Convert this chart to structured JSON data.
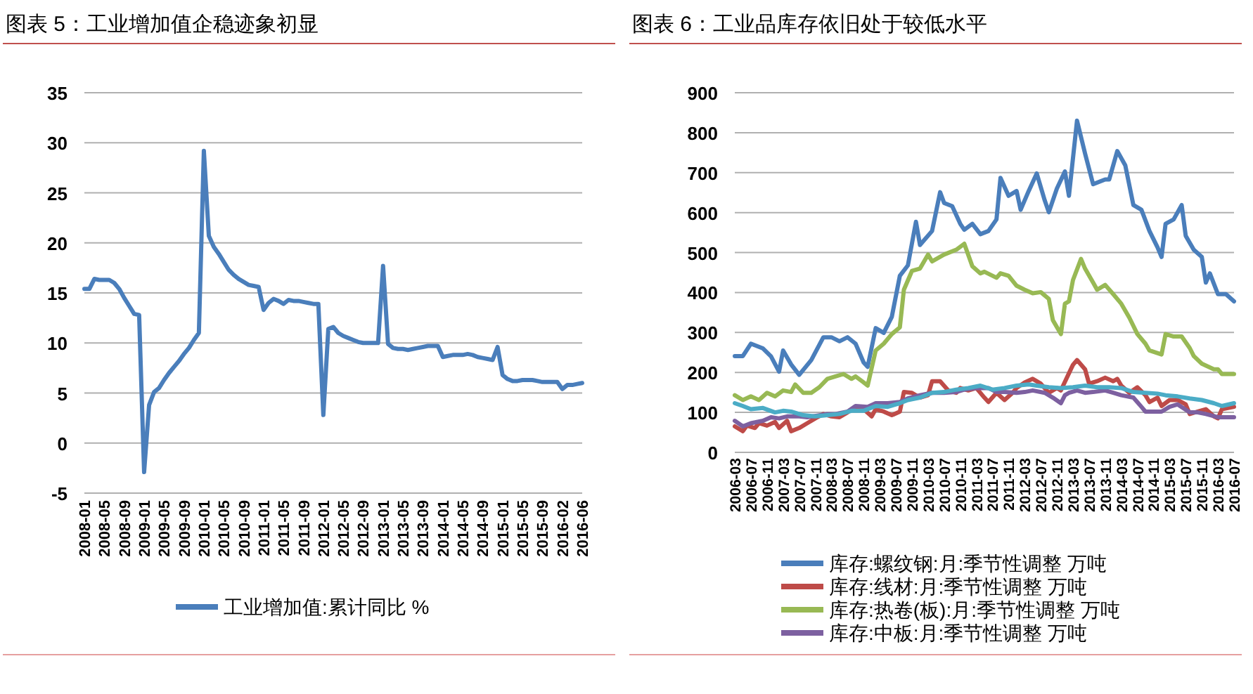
{
  "chart_data": [
    {
      "type": "line",
      "title": "图表 5：工业增加值企稳迹象初显",
      "grid": "y",
      "legend": "bottom",
      "ylim": [
        -5,
        35
      ],
      "yticks": [
        -5,
        0,
        5,
        10,
        15,
        20,
        25,
        30,
        35
      ],
      "categories": [
        "2008-01",
        null,
        null,
        null,
        "2008-05",
        null,
        null,
        null,
        "2008-09",
        null,
        null,
        null,
        "2009-01",
        null,
        null,
        null,
        "2009-05",
        null,
        null,
        null,
        "2009-09",
        null,
        null,
        null,
        "2010-01",
        null,
        null,
        null,
        "2010-05",
        null,
        null,
        null,
        "2010-09",
        null,
        null,
        null,
        "2011-01",
        null,
        null,
        null,
        "2011-05",
        null,
        null,
        null,
        "2011-09",
        null,
        null,
        null,
        "2012-01",
        null,
        null,
        null,
        "2012-05",
        null,
        null,
        null,
        "2012-09",
        null,
        null,
        null,
        "2013-01",
        null,
        null,
        null,
        "2013-05",
        null,
        null,
        null,
        "2013-09",
        null,
        null,
        null,
        "2014-01",
        null,
        null,
        null,
        "2014-05",
        null,
        null,
        null,
        "2014-09",
        null,
        null,
        null,
        "2015-01",
        null,
        null,
        null,
        "2015-05",
        null,
        null,
        null,
        "2015-09",
        null,
        null,
        null,
        "2016-02",
        null,
        null,
        null,
        "2016-06"
      ],
      "series": [
        {
          "name": "工业增加值:累计同比 %",
          "color": "#4a7ebb",
          "values": [
            15.4,
            15.4,
            16.4,
            16.3,
            16.3,
            16.3,
            16.0,
            15.4,
            14.5,
            13.7,
            12.9,
            12.8,
            -2.9,
            3.8,
            5.1,
            5.5,
            6.3,
            7.0,
            7.6,
            8.2,
            8.9,
            9.5,
            10.3,
            11.0,
            29.2,
            20.7,
            19.6,
            18.9,
            18.1,
            17.3,
            16.8,
            16.4,
            16.1,
            15.8,
            15.7,
            15.6,
            13.3,
            14.0,
            14.4,
            14.2,
            13.9,
            14.3,
            14.2,
            14.2,
            14.1,
            14.0,
            13.9,
            13.9,
            2.8,
            11.4,
            11.6,
            11.0,
            10.7,
            10.5,
            10.3,
            10.1,
            10.0,
            10.0,
            10.0,
            10.0,
            17.7,
            9.9,
            9.5,
            9.4,
            9.4,
            9.3,
            9.4,
            9.5,
            9.6,
            9.7,
            9.7,
            9.7,
            8.6,
            8.7,
            8.8,
            8.8,
            8.8,
            8.9,
            8.8,
            8.6,
            8.5,
            8.4,
            8.3,
            9.6,
            6.8,
            6.4,
            6.2,
            6.2,
            6.3,
            6.3,
            6.3,
            6.2,
            6.1,
            6.1,
            6.1,
            6.1,
            5.4,
            5.8,
            5.8,
            5.9,
            6.0
          ]
        }
      ]
    },
    {
      "type": "line",
      "title": "图表 6：工业品库存依旧处于较低水平",
      "grid": "y",
      "legend": "bottom",
      "ylim": [
        0,
        900
      ],
      "yticks": [
        0,
        100,
        200,
        300,
        400,
        500,
        600,
        700,
        800,
        900
      ],
      "xlim": [
        "2006-03",
        "2016-07"
      ],
      "xticks": [
        "2006-03",
        "2006-07",
        "2006-11",
        "2007-03",
        "2007-07",
        "2007-11",
        "2008-03",
        "2008-07",
        "2008-11",
        "2009-03",
        "2009-07",
        "2009-11",
        "2010-03",
        "2010-07",
        "2010-11",
        "2011-03",
        "2011-07",
        "2011-11",
        "2012-03",
        "2012-07",
        "2012-11",
        "2013-03",
        "2013-07",
        "2013-11",
        "2014-03",
        "2014-07",
        "2014-11",
        "2015-03",
        "2015-07",
        "2015-11",
        "2016-03",
        "2016-07"
      ],
      "series": [
        {
          "name": "库存:螺纹钢:月:季节性调整 万吨",
          "color": "#4a7ebb",
          "x": [
            "2006-03",
            "2006-05",
            "2006-07",
            "2006-10",
            "2006-12",
            "2007-02",
            "2007-03",
            "2007-05",
            "2007-07",
            "2007-10",
            "2008-01",
            "2008-03",
            "2008-05",
            "2008-07",
            "2008-09",
            "2008-11",
            "2008-12",
            "2009-02",
            "2009-04",
            "2009-06",
            "2009-08",
            "2009-10",
            "2009-12",
            "2010-01",
            "2010-04",
            "2010-06",
            "2010-07",
            "2010-09",
            "2010-11",
            "2010-12",
            "2011-02",
            "2011-04",
            "2011-06",
            "2011-08",
            "2011-09",
            "2011-11",
            "2012-01",
            "2012-02",
            "2012-04",
            "2012-06",
            "2012-08",
            "2012-09",
            "2012-11",
            "2013-01",
            "2013-02",
            "2013-04",
            "2013-06",
            "2013-08",
            "2013-11",
            "2013-12",
            "2014-02",
            "2014-04",
            "2014-06",
            "2014-08",
            "2014-10",
            "2014-12",
            "2015-01",
            "2015-02",
            "2015-04",
            "2015-06",
            "2015-07",
            "2015-09",
            "2015-11",
            "2015-12",
            "2016-01",
            "2016-03",
            "2016-05",
            "2016-07"
          ],
          "values": [
            241,
            241,
            272,
            260,
            240,
            202,
            255,
            220,
            194,
            231,
            288,
            288,
            278,
            288,
            272,
            225,
            214,
            311,
            299,
            339,
            442,
            468,
            577,
            519,
            554,
            651,
            624,
            616,
            572,
            557,
            572,
            546,
            554,
            583,
            687,
            642,
            654,
            607,
            654,
            698,
            630,
            601,
            660,
            703,
            642,
            830,
            748,
            671,
            683,
            683,
            754,
            718,
            619,
            607,
            554,
            513,
            489,
            572,
            583,
            619,
            542,
            507,
            489,
            425,
            448,
            396,
            396,
            378
          ]
        },
        {
          "name": "库存:线材:月:季节性调整 万吨",
          "color": "#be4b48",
          "x": [
            "2006-03",
            "2006-05",
            "2006-06",
            "2006-08",
            "2006-09",
            "2006-11",
            "2007-01",
            "2007-02",
            "2007-04",
            "2007-05",
            "2007-07",
            "2007-09",
            "2007-11",
            "2008-01",
            "2008-03",
            "2008-05",
            "2008-07",
            "2008-09",
            "2008-11",
            "2009-01",
            "2009-02",
            "2009-04",
            "2009-06",
            "2009-08",
            "2009-09",
            "2009-11",
            "2010-01",
            "2010-03",
            "2010-04",
            "2010-06",
            "2010-08",
            "2010-10",
            "2010-11",
            "2011-01",
            "2011-03",
            "2011-05",
            "2011-06",
            "2011-08",
            "2011-10",
            "2011-12",
            "2012-01",
            "2012-03",
            "2012-05",
            "2012-07",
            "2012-09",
            "2012-11",
            "2012-12",
            "2013-02",
            "2013-03",
            "2013-04",
            "2013-06",
            "2013-07",
            "2013-09",
            "2013-11",
            "2014-01",
            "2014-02",
            "2014-03",
            "2014-05",
            "2014-07",
            "2014-09",
            "2014-10",
            "2014-12",
            "2015-01",
            "2015-03",
            "2015-05",
            "2015-07",
            "2015-08",
            "2015-10",
            "2015-12",
            "2016-02",
            "2016-03",
            "2016-04",
            "2016-07"
          ],
          "values": [
            65,
            53,
            67,
            61,
            73,
            67,
            76,
            61,
            79,
            53,
            61,
            73,
            85,
            96,
            90,
            88,
            100,
            114,
            108,
            90,
            108,
            102,
            93,
            102,
            151,
            149,
            137,
            143,
            178,
            178,
            155,
            149,
            161,
            155,
            161,
            137,
            126,
            149,
            131,
            149,
            161,
            175,
            184,
            172,
            149,
            161,
            155,
            198,
            219,
            231,
            208,
            172,
            178,
            187,
            178,
            184,
            167,
            149,
            163,
            143,
            126,
            137,
            116,
            131,
            131,
            120,
            96,
            102,
            108,
            90,
            85,
            108,
            114
          ]
        },
        {
          "name": "库存:热卷(板):月:季节性调整 万吨",
          "color": "#98b954",
          "x": [
            "2006-03",
            "2006-05",
            "2006-07",
            "2006-09",
            "2006-11",
            "2007-01",
            "2007-03",
            "2007-05",
            "2007-06",
            "2007-08",
            "2007-10",
            "2007-12",
            "2008-02",
            "2008-04",
            "2008-06",
            "2008-08",
            "2008-09",
            "2008-11",
            "2008-12",
            "2009-02",
            "2009-04",
            "2009-06",
            "2009-08",
            "2009-09",
            "2009-11",
            "2010-01",
            "2010-03",
            "2010-04",
            "2010-07",
            "2010-10",
            "2010-12",
            "2011-02",
            "2011-04",
            "2011-05",
            "2011-08",
            "2011-09",
            "2011-11",
            "2012-01",
            "2012-03",
            "2012-05",
            "2012-07",
            "2012-09",
            "2012-10",
            "2012-12",
            "2013-01",
            "2013-02",
            "2013-03",
            "2013-05",
            "2013-06",
            "2013-08",
            "2013-09",
            "2013-11",
            "2014-01",
            "2014-03",
            "2014-05",
            "2014-07",
            "2014-09",
            "2014-10",
            "2015-01",
            "2015-02",
            "2015-04",
            "2015-06",
            "2015-08",
            "2015-09",
            "2015-11",
            "2016-02",
            "2016-03",
            "2016-04",
            "2016-07"
          ],
          "values": [
            143,
            131,
            140,
            131,
            149,
            140,
            155,
            151,
            170,
            149,
            149,
            163,
            184,
            190,
            196,
            184,
            190,
            175,
            167,
            255,
            272,
            296,
            313,
            407,
            454,
            460,
            495,
            478,
            495,
            507,
            522,
            466,
            448,
            452,
            437,
            448,
            442,
            417,
            407,
            398,
            401,
            384,
            331,
            296,
            372,
            378,
            431,
            484,
            460,
            425,
            407,
            419,
            396,
            372,
            337,
            296,
            272,
            255,
            245,
            296,
            290,
            290,
            261,
            241,
            222,
            208,
            208,
            196,
            196
          ]
        },
        {
          "name": "库存:中板:月:季节性调整 万吨",
          "color": "#7d60a0",
          "x": [
            "2006-03",
            "2006-05",
            "2006-07",
            "2006-10",
            "2006-12",
            "2007-02",
            "2007-04",
            "2007-07",
            "2007-09",
            "2007-12",
            "2008-02",
            "2008-04",
            "2008-07",
            "2008-09",
            "2008-12",
            "2009-02",
            "2009-05",
            "2009-08",
            "2009-10",
            "2010-01",
            "2010-04",
            "2010-07",
            "2010-10",
            "2010-12",
            "2011-03",
            "2011-06",
            "2011-08",
            "2011-10",
            "2012-01",
            "2012-03",
            "2012-05",
            "2012-08",
            "2012-10",
            "2012-12",
            "2013-01",
            "2013-02",
            "2013-04",
            "2013-06",
            "2013-08",
            "2013-11",
            "2014-01",
            "2014-03",
            "2014-06",
            "2014-08",
            "2014-09",
            "2014-12",
            "2015-01",
            "2015-03",
            "2015-05",
            "2015-08",
            "2015-10",
            "2015-12",
            "2016-03",
            "2016-07"
          ],
          "values": [
            79,
            65,
            73,
            79,
            88,
            85,
            90,
            90,
            88,
            93,
            96,
            96,
            102,
            116,
            114,
            123,
            123,
            126,
            135,
            143,
            149,
            149,
            151,
            157,
            161,
            161,
            151,
            151,
            149,
            151,
            155,
            149,
            137,
            123,
            143,
            149,
            155,
            149,
            151,
            155,
            149,
            143,
            137,
            114,
            102,
            102,
            102,
            114,
            120,
            100,
            100,
            96,
            88,
            88
          ]
        },
        {
          "color": "#4bacc6",
          "x": [
            "2006-03",
            "2006-05",
            "2006-07",
            "2006-10",
            "2007-01",
            "2007-03",
            "2007-05",
            "2007-08",
            "2007-11",
            "2008-02",
            "2008-05",
            "2008-08",
            "2008-11",
            "2009-02",
            "2009-05",
            "2009-08",
            "2009-10",
            "2010-01",
            "2010-04",
            "2010-07",
            "2010-10",
            "2011-01",
            "2011-04",
            "2011-07",
            "2011-10",
            "2012-01",
            "2012-04",
            "2012-06",
            "2012-09",
            "2012-12",
            "2013-03",
            "2013-06",
            "2013-09",
            "2013-12",
            "2014-03",
            "2014-06",
            "2014-09",
            "2014-12",
            "2015-02",
            "2015-05",
            "2015-08",
            "2015-11",
            "2016-02",
            "2016-04",
            "2016-07"
          ],
          "values": [
            123,
            116,
            108,
            111,
            100,
            104,
            102,
            93,
            90,
            93,
            96,
            104,
            104,
            116,
            114,
            123,
            131,
            137,
            149,
            151,
            157,
            161,
            167,
            157,
            161,
            167,
            170,
            167,
            163,
            161,
            163,
            167,
            163,
            163,
            161,
            151,
            149,
            147,
            143,
            140,
            135,
            131,
            123,
            116,
            123
          ]
        }
      ]
    }
  ]
}
